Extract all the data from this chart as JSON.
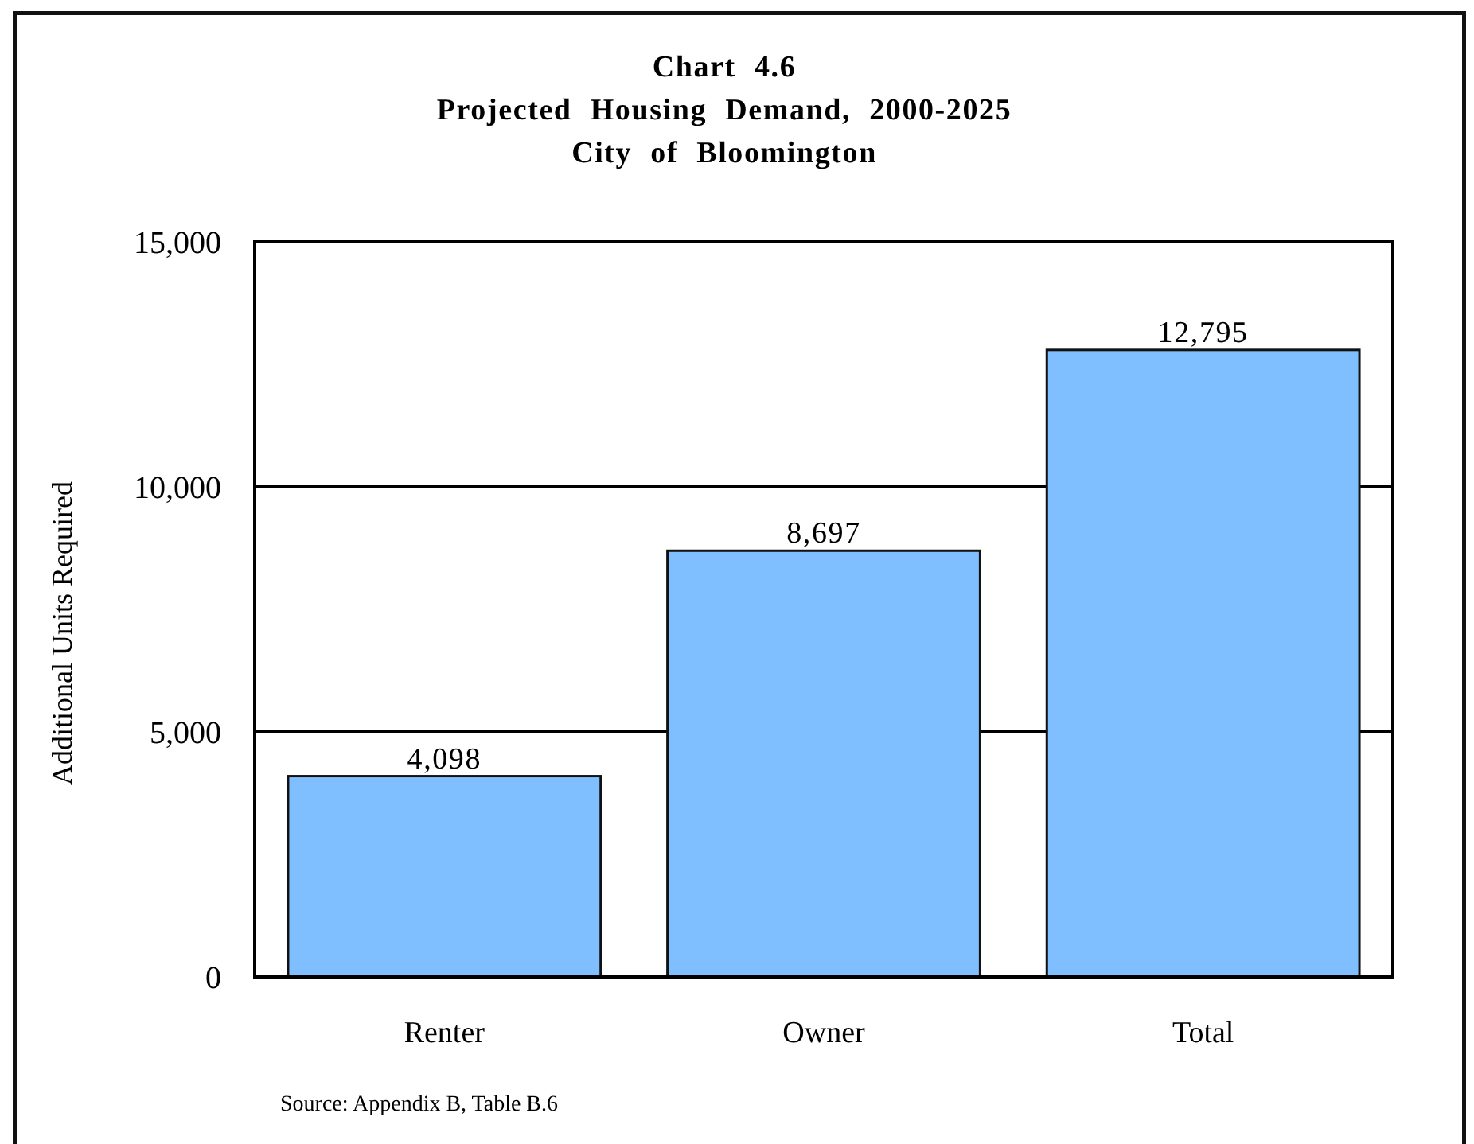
{
  "chart_data": {
    "type": "bar",
    "title": "Chart 4.6\nProjected Housing Demand, 2000-2025\nCity of Bloomington",
    "ylabel": "Additional Units Required",
    "categories": [
      "Renter",
      "Owner",
      "Total"
    ],
    "values": [
      4098,
      8697,
      12795
    ],
    "color": "#80bfff",
    "value_labels": [
      "4,098",
      "8,697",
      "12,795"
    ],
    "ylim": [
      0,
      15000
    ],
    "yticks": [
      {
        "value": 0,
        "label": "0"
      },
      {
        "value": 5000,
        "label": "5,000"
      },
      {
        "value": 10000,
        "label": "10,000"
      },
      {
        "value": 15000,
        "label": "15,000"
      }
    ],
    "grid": "y",
    "annotations": [
      "Source: Appendix B, Table B.6"
    ]
  }
}
